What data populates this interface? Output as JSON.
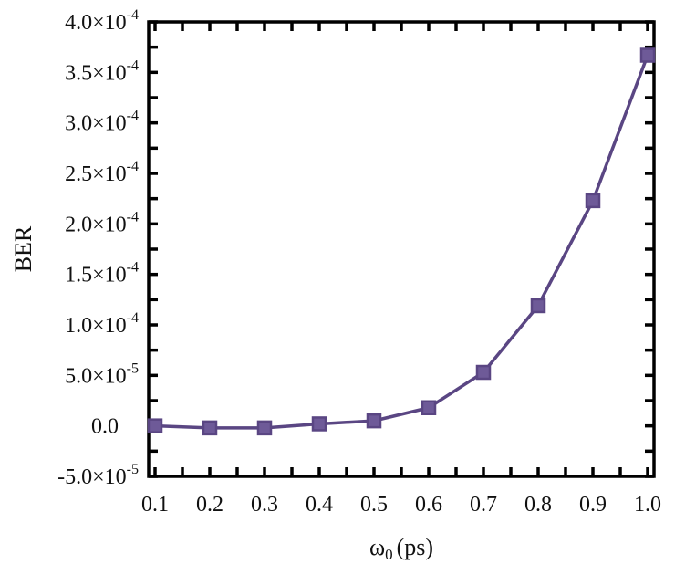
{
  "chart_data": {
    "type": "line",
    "title": "",
    "xlabel": "ω0 (ps)",
    "xlabel_main": "ω",
    "xlabel_sub": "0",
    "xlabel_unit": "(ps)",
    "ylabel": "BER",
    "x": [
      0.1,
      0.2,
      0.3,
      0.4,
      0.5,
      0.6,
      0.7,
      0.8,
      0.9,
      1.0
    ],
    "series": [
      {
        "name": "BER",
        "color": "#5a4683",
        "marker": "square",
        "values": [
          0.0,
          -2e-06,
          -2e-06,
          2e-06,
          5e-06,
          1.8e-05,
          5.3e-05,
          0.000119,
          0.000223,
          0.000367
        ]
      }
    ],
    "xlim": [
      0.1,
      1.0
    ],
    "ylim": [
      -5e-05,
      0.0004
    ],
    "xticks": [
      "0.1",
      "0.2",
      "0.3",
      "0.4",
      "0.5",
      "0.6",
      "0.7",
      "0.8",
      "0.9",
      "1.0"
    ],
    "yticks": [
      {
        "value": 0.0004,
        "mantissa": "4.0",
        "exp": "-4"
      },
      {
        "value": 0.00035,
        "mantissa": "3.5",
        "exp": "-4"
      },
      {
        "value": 0.0003,
        "mantissa": "3.0",
        "exp": "-4"
      },
      {
        "value": 0.00025,
        "mantissa": "2.5",
        "exp": "-4"
      },
      {
        "value": 0.0002,
        "mantissa": "2.0",
        "exp": "-4"
      },
      {
        "value": 0.00015,
        "mantissa": "1.5",
        "exp": "-4"
      },
      {
        "value": 0.0001,
        "mantissa": "1.0",
        "exp": "-4"
      },
      {
        "value": 5e-05,
        "mantissa": "5.0",
        "exp": "-5"
      },
      {
        "value": 0.0,
        "mantissa": "0.0",
        "exp": ""
      },
      {
        "value": -5e-05,
        "mantissa": "-5.0",
        "exp": "-5"
      }
    ],
    "grid": false,
    "legend": null
  }
}
